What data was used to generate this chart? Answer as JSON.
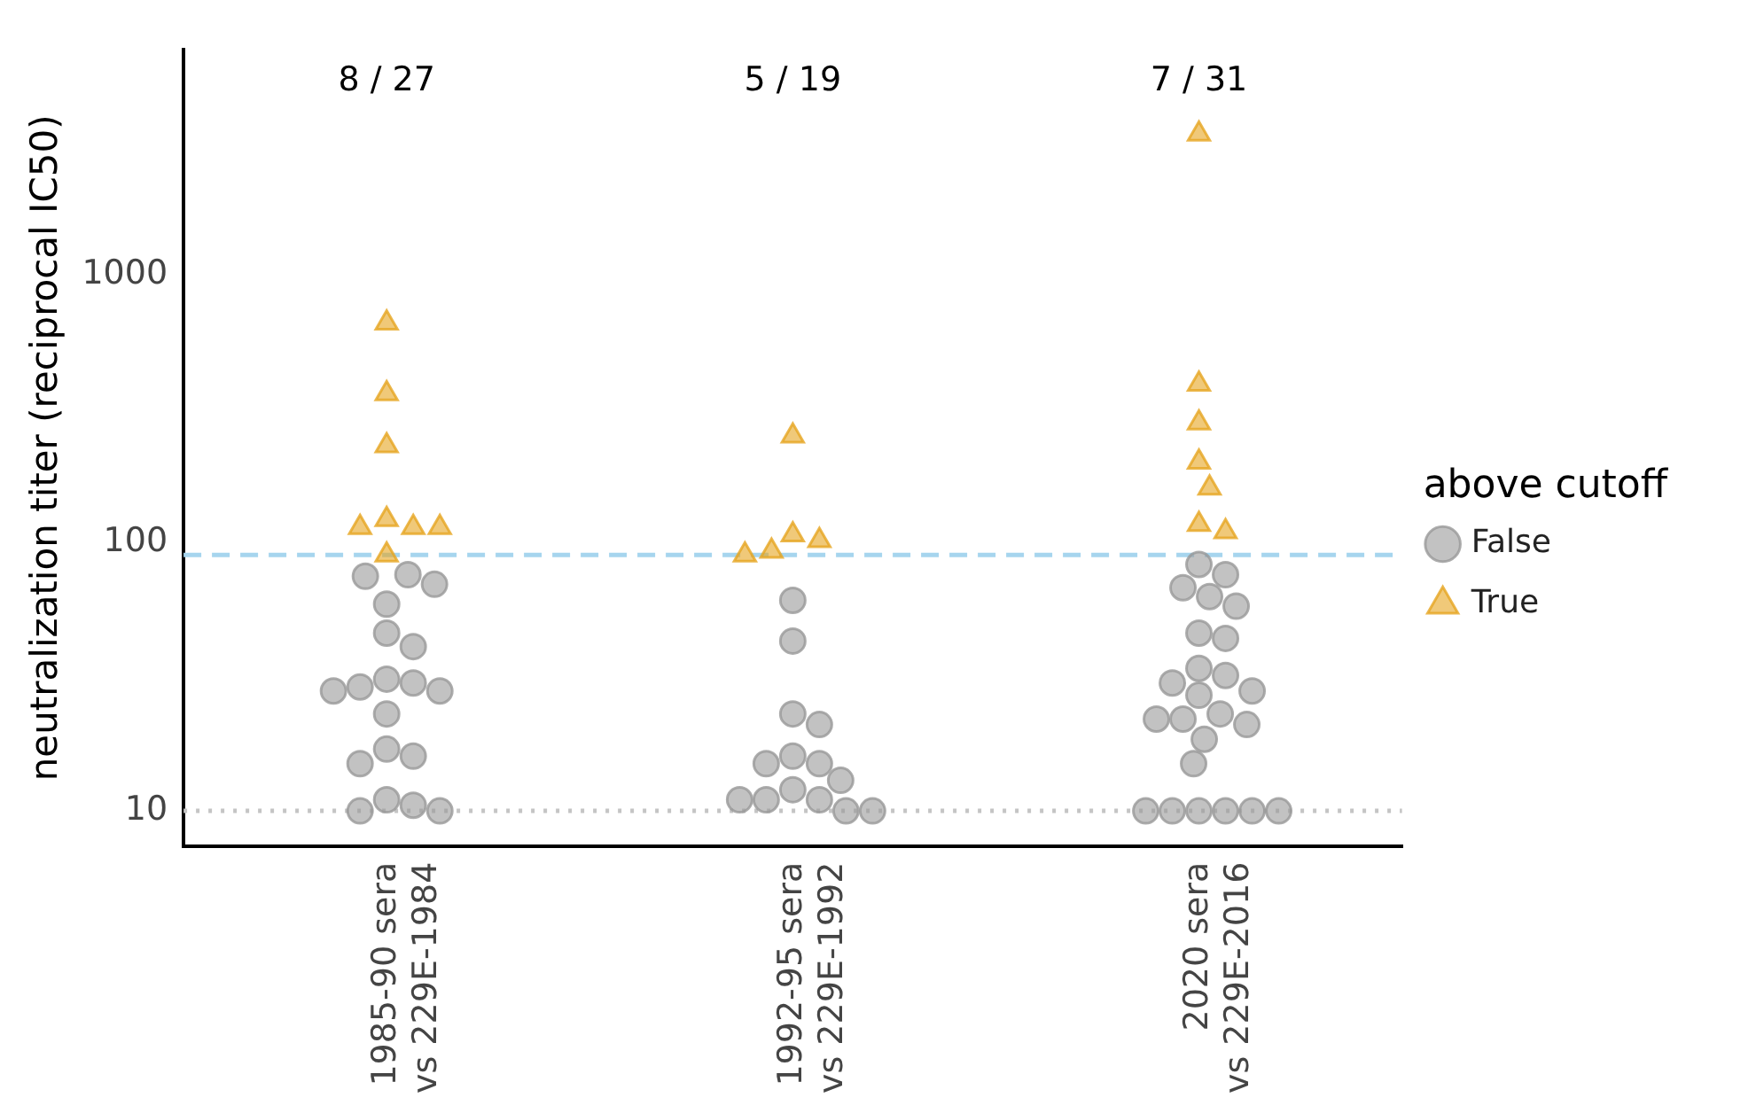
{
  "chart_data": {
    "type": "scatter",
    "ylabel": "neutralization titer (reciprocal IC50)",
    "legend_title": "above cutoff",
    "legend": "right",
    "categories": [
      "1985-90 sera\nvs 229E-1984",
      "1992-95 sera\nvs 229E-1992",
      "2020 sera\nvs 229E-2016"
    ],
    "log": "y",
    "ylim": [
      7.4,
      6900
    ],
    "yticks": [
      10,
      100,
      1000
    ],
    "grid": false,
    "series": [
      {
        "name": "False",
        "color": "#999999",
        "marker": "circle",
        "x": [
          "1985-90 sera\nvs 229E-1984",
          "1985-90 sera\nvs 229E-1984",
          "1985-90 sera\nvs 229E-1984",
          "1985-90 sera\nvs 229E-1984",
          "1985-90 sera\nvs 229E-1984",
          "1985-90 sera\nvs 229E-1984",
          "1985-90 sera\nvs 229E-1984",
          "1985-90 sera\nvs 229E-1984",
          "1985-90 sera\nvs 229E-1984",
          "1985-90 sera\nvs 229E-1984",
          "1985-90 sera\nvs 229E-1984",
          "1985-90 sera\nvs 229E-1984",
          "1985-90 sera\nvs 229E-1984",
          "1985-90 sera\nvs 229E-1984",
          "1985-90 sera\nvs 229E-1984",
          "1985-90 sera\nvs 229E-1984",
          "1985-90 sera\nvs 229E-1984",
          "1985-90 sera\nvs 229E-1984",
          "1985-90 sera\nvs 229E-1984",
          "1992-95 sera\nvs 229E-1992",
          "1992-95 sera\nvs 229E-1992",
          "1992-95 sera\nvs 229E-1992",
          "1992-95 sera\nvs 229E-1992",
          "1992-95 sera\nvs 229E-1992",
          "1992-95 sera\nvs 229E-1992",
          "1992-95 sera\nvs 229E-1992",
          "1992-95 sera\nvs 229E-1992",
          "1992-95 sera\nvs 229E-1992",
          "1992-95 sera\nvs 229E-1992",
          "1992-95 sera\nvs 229E-1992",
          "1992-95 sera\nvs 229E-1992",
          "1992-95 sera\nvs 229E-1992",
          "1992-95 sera\nvs 229E-1992",
          "2020 sera\nvs 229E-2016",
          "2020 sera\nvs 229E-2016",
          "2020 sera\nvs 229E-2016",
          "2020 sera\nvs 229E-2016",
          "2020 sera\nvs 229E-2016",
          "2020 sera\nvs 229E-2016",
          "2020 sera\nvs 229E-2016",
          "2020 sera\nvs 229E-2016",
          "2020 sera\nvs 229E-2016",
          "2020 sera\nvs 229E-2016",
          "2020 sera\nvs 229E-2016",
          "2020 sera\nvs 229E-2016",
          "2020 sera\nvs 229E-2016",
          "2020 sera\nvs 229E-2016",
          "2020 sera\nvs 229E-2016",
          "2020 sera\nvs 229E-2016",
          "2020 sera\nvs 229E-2016",
          "2020 sera\nvs 229E-2016",
          "2020 sera\nvs 229E-2016",
          "2020 sera\nvs 229E-2016",
          "2020 sera\nvs 229E-2016",
          "2020 sera\nvs 229E-2016",
          "2020 sera\nvs 229E-2016",
          "2020 sera\nvs 229E-2016"
        ],
        "values": [
          75,
          76,
          70,
          59,
          46,
          41,
          31,
          28,
          29,
          28,
          30,
          23,
          17,
          16,
          15,
          11,
          10,
          10.5,
          10,
          61,
          43,
          21,
          23,
          15,
          16,
          15,
          12,
          13,
          11,
          11,
          10,
          11,
          10,
          83,
          68,
          76,
          58,
          63,
          46,
          44,
          34,
          32,
          27,
          28,
          30,
          23,
          22,
          22,
          21,
          18.5,
          15,
          10,
          10,
          10,
          10,
          10,
          10
        ]
      },
      {
        "name": "True",
        "color": "#e6a520",
        "marker": "triangle",
        "x": [
          "1985-90 sera\nvs 229E-1984",
          "1985-90 sera\nvs 229E-1984",
          "1985-90 sera\nvs 229E-1984",
          "1985-90 sera\nvs 229E-1984",
          "1985-90 sera\nvs 229E-1984",
          "1985-90 sera\nvs 229E-1984",
          "1985-90 sera\nvs 229E-1984",
          "1985-90 sera\nvs 229E-1984",
          "1992-95 sera\nvs 229E-1992",
          "1992-95 sera\nvs 229E-1992",
          "1992-95 sera\nvs 229E-1992",
          "1992-95 sera\nvs 229E-1992",
          "1992-95 sera\nvs 229E-1992",
          "2020 sera\nvs 229E-2016",
          "2020 sera\nvs 229E-2016",
          "2020 sera\nvs 229E-2016",
          "2020 sera\nvs 229E-2016",
          "2020 sera\nvs 229E-2016",
          "2020 sera\nvs 229E-2016",
          "2020 sera\nvs 229E-2016"
        ],
        "values": [
          660,
          360,
          230,
          114,
          114,
          114,
          122,
          90,
          250,
          107,
          93,
          90,
          102,
          3340,
          390,
          280,
          200,
          160,
          110,
          117
        ]
      }
    ],
    "ref_lines": [
      {
        "axis": "y",
        "value": 90,
        "color": "#a6d5ee",
        "line_style": "dashed"
      },
      {
        "axis": "y",
        "value": 10,
        "color": "#c4c4c4",
        "line_style": "dotted"
      }
    ],
    "annotations": [
      "8 / 27",
      "5 / 19",
      "7 / 31"
    ]
  }
}
